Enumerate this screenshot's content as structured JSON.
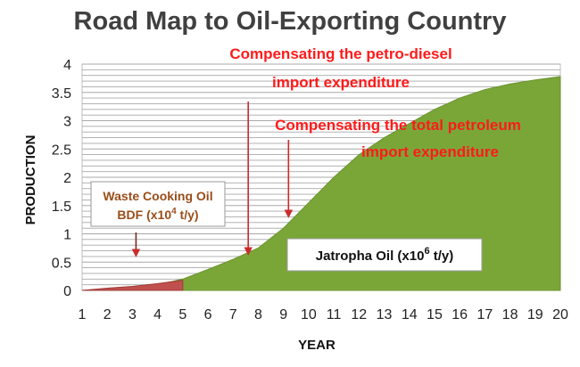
{
  "chart_data": {
    "type": "area",
    "title": "Road Map to Oil-Exporting Country",
    "xlabel": "YEAR",
    "ylabel": "PRODUCTION",
    "x": [
      1,
      2,
      3,
      4,
      5,
      6,
      7,
      8,
      9,
      10,
      11,
      12,
      13,
      14,
      15,
      16,
      17,
      18,
      19,
      20
    ],
    "xlim": [
      1,
      20
    ],
    "ylim": [
      0,
      4
    ],
    "y_ticks": [
      "0",
      "0.5",
      "1",
      "1.5",
      "2",
      "2.5",
      "3",
      "3.5",
      "4"
    ],
    "x_ticks": [
      "1",
      "2",
      "3",
      "4",
      "5",
      "6",
      "7",
      "8",
      "9",
      "10",
      "11",
      "12",
      "13",
      "14",
      "15",
      "16",
      "17",
      "18",
      "19",
      "20"
    ],
    "grid": true,
    "series": [
      {
        "name": "Jatropha Oil (x10⁶ t/y)",
        "color": "#7aa638",
        "values": [
          0,
          0.02,
          0.05,
          0.1,
          0.2,
          0.37,
          0.55,
          0.75,
          1.1,
          1.55,
          2.0,
          2.4,
          2.7,
          2.95,
          3.2,
          3.4,
          3.55,
          3.65,
          3.72,
          3.78
        ]
      },
      {
        "name": "Waste Cooking Oil BDF (x10⁴ t/y)",
        "color": "#c0504d",
        "values": [
          0,
          0.04,
          0.07,
          0.12,
          0.18,
          null,
          null,
          null,
          null,
          null,
          null,
          null,
          null,
          null,
          null,
          null,
          null,
          null,
          null,
          null
        ]
      }
    ],
    "annotations": {
      "petro_diesel": {
        "line1": "Compensating the petro-diesel",
        "line2": "import expenditure",
        "arrow_x": 7.6
      },
      "total_petroleum": {
        "line1": "Compensating the total petroleum",
        "line2": "import expenditure",
        "arrow_x": 9.2
      },
      "waste_box": {
        "line1": "Waste Cooking Oil",
        "line2_prefix": "BDF (x10",
        "line2_sup": "4",
        "line2_suffix": " t/y)",
        "arrow_x": 3.0
      },
      "jatropha_box": {
        "prefix": "Jatropha Oil (x10",
        "sup": "6",
        "suffix": " t/y)"
      }
    }
  }
}
